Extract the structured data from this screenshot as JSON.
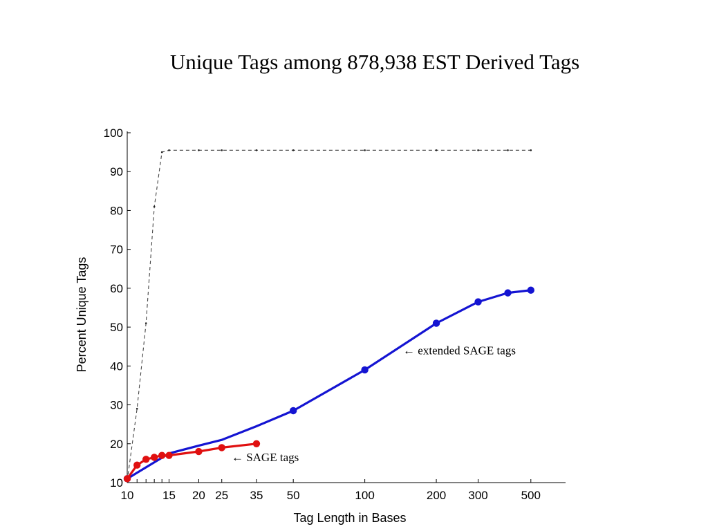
{
  "title": "Unique Tags among 878,938 EST Derived Tags",
  "chart_data": {
    "type": "line",
    "xlabel": "Tag Length in Bases",
    "ylabel": "Percent Unique Tags",
    "xscale": "log",
    "xlim": [
      10,
      700
    ],
    "ylim": [
      10,
      100
    ],
    "x_ticks": [
      10,
      15,
      20,
      25,
      35,
      50,
      100,
      200,
      300,
      500
    ],
    "x_minor_ticks": [
      11,
      12,
      13,
      14
    ],
    "y_ticks": [
      10,
      20,
      30,
      40,
      50,
      60,
      70,
      80,
      90,
      100
    ],
    "grid": false,
    "series": [
      {
        "id": "upper-dashed",
        "style": "dashed",
        "color": "#444444",
        "x": [
          10,
          11,
          12,
          13,
          14,
          15,
          20,
          25,
          35,
          50,
          100,
          200,
          300,
          400,
          500
        ],
        "y": [
          10.5,
          29,
          51,
          81,
          95,
          95.5,
          95.5,
          95.5,
          95.5,
          95.5,
          95.5,
          95.5,
          95.5,
          95.5,
          95.5
        ]
      },
      {
        "id": "extended-sage",
        "color": "#1414d2",
        "x": [
          10,
          15,
          20,
          25,
          35,
          50,
          100,
          200,
          300,
          400,
          500
        ],
        "y": [
          11,
          17.5,
          19.5,
          21,
          24.5,
          28.5,
          39,
          51,
          56.5,
          58.8,
          59.5
        ],
        "marker_x": [
          10,
          50,
          100,
          200,
          300,
          400,
          500
        ],
        "marker_y": [
          11,
          28.5,
          39,
          51,
          56.5,
          58.8,
          59.5
        ]
      },
      {
        "id": "sage",
        "color": "#e01010",
        "x": [
          10,
          11,
          12,
          13,
          14,
          15,
          20,
          25,
          35
        ],
        "y": [
          11,
          14.5,
          16,
          16.5,
          17,
          17,
          18,
          19,
          20
        ]
      }
    ],
    "annotations": [
      {
        "text": "← extended SAGE tags",
        "x": 145,
        "y": 43
      },
      {
        "text": "← SAGE tags",
        "x": 27.5,
        "y": 15.5
      }
    ]
  }
}
